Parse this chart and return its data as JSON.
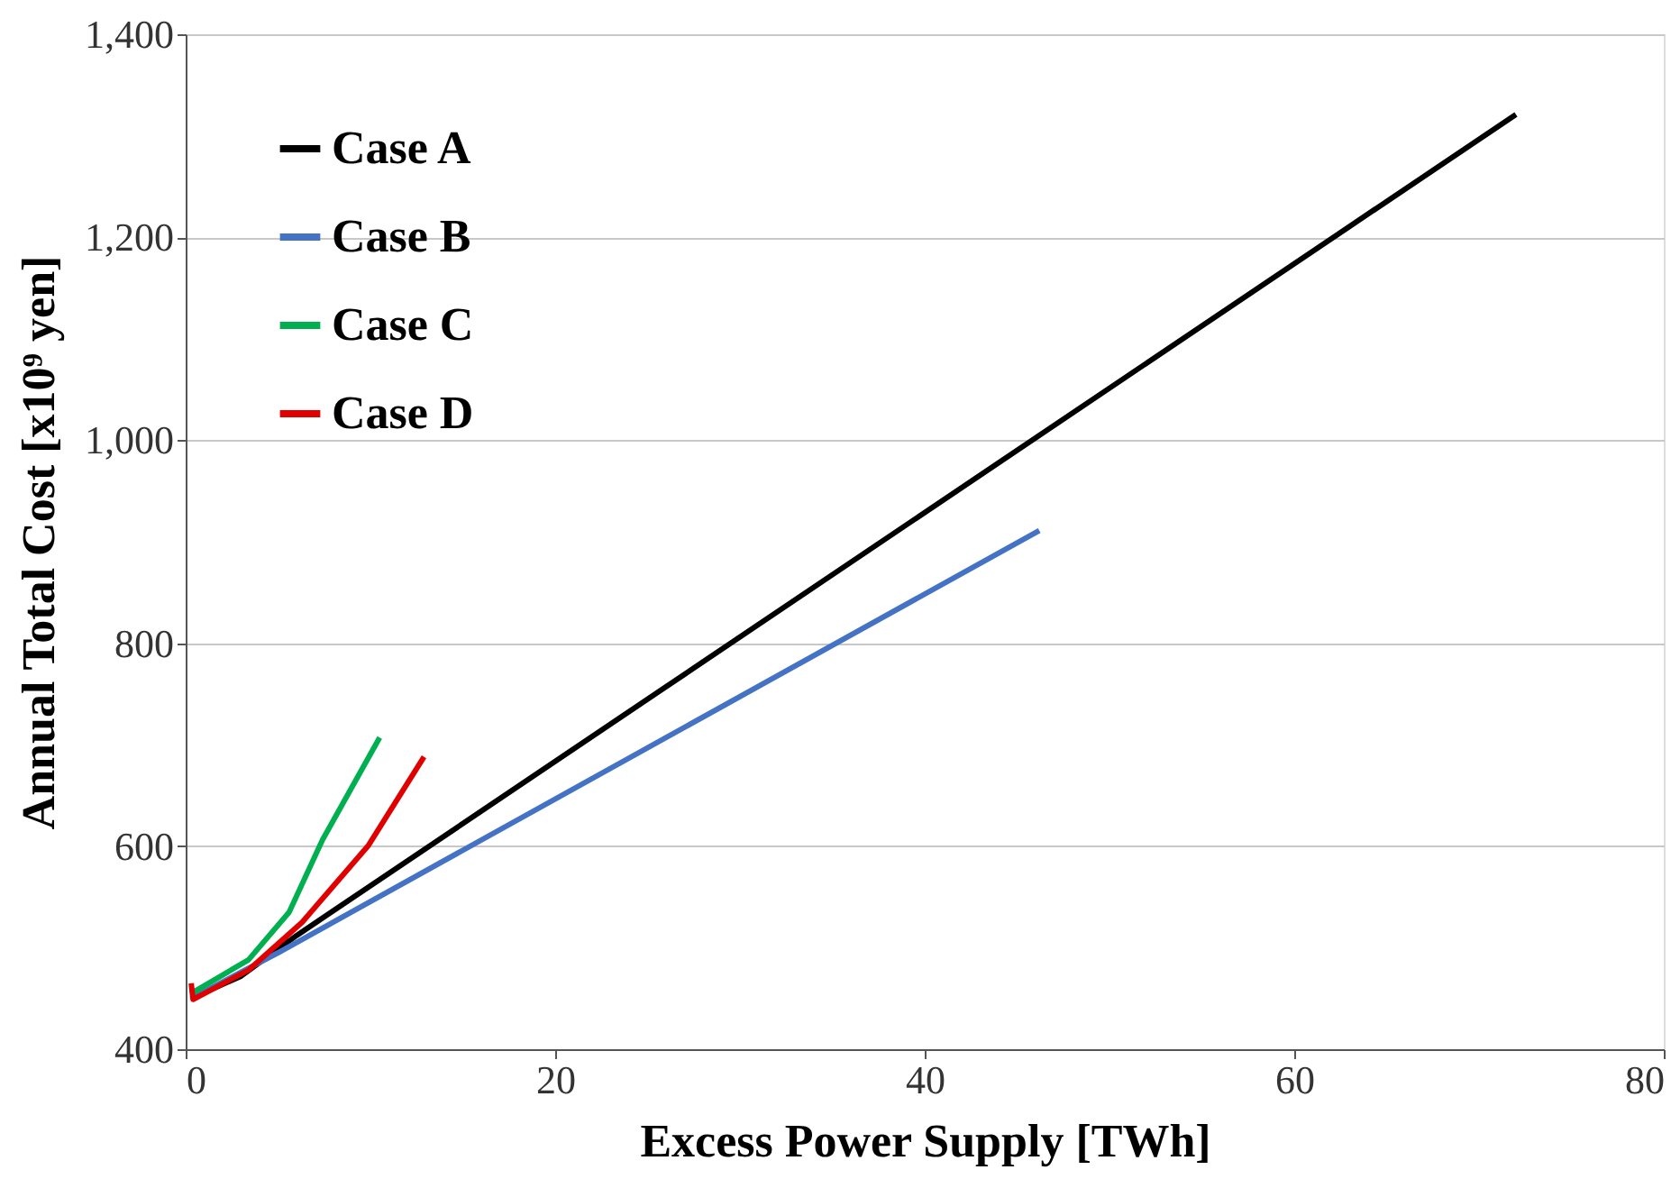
{
  "chart_data": {
    "type": "line",
    "xlabel": "Excess Power Supply [TWh]",
    "ylabel": "Annual Total Cost [x10⁹ yen]",
    "xlim": [
      0,
      80
    ],
    "xticks": [
      0,
      20,
      40,
      60,
      80
    ],
    "ylim": [
      400,
      1400
    ],
    "yticks": [
      {
        "value": 400,
        "label": "400"
      },
      {
        "value": 600,
        "label": "600"
      },
      {
        "value": 800,
        "label": "800"
      },
      {
        "value": 1000,
        "label": "1,000"
      },
      {
        "value": 1200,
        "label": "1,200"
      },
      {
        "value": 1400,
        "label": "1,400"
      }
    ],
    "grid": "y",
    "legend": "top left",
    "line_style": "solid",
    "marker": "none",
    "series": [
      {
        "name": "Case A",
        "color": "#000000",
        "x": [
          0.3,
          3,
          6,
          72
        ],
        "values": [
          450,
          472,
          512,
          1321
        ]
      },
      {
        "name": "Case B",
        "color": "#4472c4",
        "x": [
          0.3,
          5,
          46.2
        ],
        "values": [
          450,
          495,
          911
        ]
      },
      {
        "name": "Case C",
        "color": "#00b050",
        "x": [
          0.3,
          3.4,
          5.6,
          7.4,
          10.5
        ],
        "values": [
          455,
          488,
          535,
          606,
          707
        ]
      },
      {
        "name": "Case D",
        "color": "#e00000",
        "x": [
          0.3,
          0.4,
          3.4,
          6.3,
          9.9,
          12.9
        ],
        "values": [
          465,
          449,
          478,
          525,
          601,
          688
        ]
      }
    ]
  }
}
